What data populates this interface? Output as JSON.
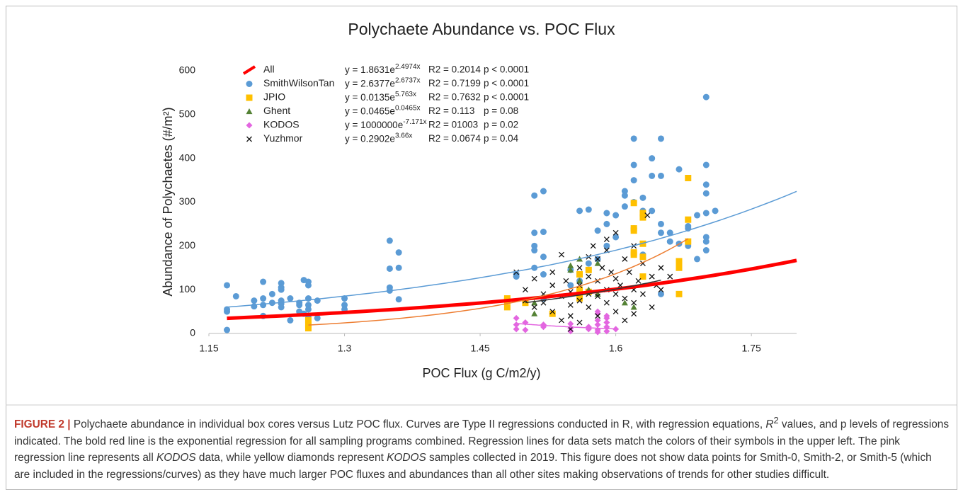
{
  "chart_data": {
    "type": "scatter",
    "title": "Polychaete Abundance vs. POC Flux",
    "x_label": "POC Flux (g C/m2/y)",
    "y_label": "Abundance of Polychaetes (#/m²)",
    "xlim": [
      1.15,
      1.8
    ],
    "xticks": [
      1.15,
      1.3,
      1.45,
      1.6,
      1.75
    ],
    "ylim": [
      0,
      600
    ],
    "yticks": [
      0,
      100,
      200,
      300,
      400,
      500,
      600
    ],
    "grid": false,
    "legend": "upper left",
    "series": [
      {
        "name": "All",
        "color": "#ff0000",
        "marker": "line",
        "equation_base": "y = 1.8631e",
        "equation_exponent": "2.4974x",
        "r2": "R2 = 0.2014",
        "p": "p < 0.0001",
        "fit": {
          "a": 1.8631,
          "b": 2.4974,
          "x_range": [
            1.17,
            1.8
          ],
          "color": "#ff0000",
          "width": 5
        },
        "x": [],
        "values": []
      },
      {
        "name": "SmithWilsonTan",
        "color": "#5b9bd5",
        "marker": "circle",
        "equation_base": "y = 2.6377e",
        "equation_exponent": "2.6737x",
        "r2": "R2 = 0.7199",
        "p": "p < 0.0001",
        "fit": {
          "a": 2.6377,
          "b": 2.6737,
          "x_range": [
            1.17,
            1.8
          ],
          "color": "#5b9bd5",
          "width": 1.5
        },
        "x": [
          1.17,
          1.17,
          1.17,
          1.17,
          1.18,
          1.2,
          1.2,
          1.21,
          1.21,
          1.21,
          1.21,
          1.22,
          1.22,
          1.23,
          1.23,
          1.23,
          1.23,
          1.23,
          1.23,
          1.24,
          1.24,
          1.25,
          1.25,
          1.25,
          1.255,
          1.255,
          1.26,
          1.26,
          1.26,
          1.26,
          1.26,
          1.26,
          1.27,
          1.27,
          1.3,
          1.3,
          1.3,
          1.35,
          1.35,
          1.35,
          1.35,
          1.36,
          1.36,
          1.36,
          1.49,
          1.49,
          1.51,
          1.51,
          1.51,
          1.51,
          1.51,
          1.52,
          1.52,
          1.52,
          1.52,
          1.52,
          1.55,
          1.55,
          1.56,
          1.56,
          1.57,
          1.57,
          1.58,
          1.58,
          1.59,
          1.59,
          1.59,
          1.6,
          1.6,
          1.61,
          1.61,
          1.61,
          1.62,
          1.62,
          1.62,
          1.62,
          1.62,
          1.63,
          1.63,
          1.63,
          1.64,
          1.64,
          1.64,
          1.65,
          1.65,
          1.65,
          1.65,
          1.65,
          1.66,
          1.66,
          1.67,
          1.67,
          1.68,
          1.68,
          1.68,
          1.69,
          1.69,
          1.7,
          1.7,
          1.7,
          1.7,
          1.7,
          1.7,
          1.7,
          1.7,
          1.71
        ],
        "values": [
          110,
          55,
          50,
          8,
          85,
          62,
          75,
          118,
          80,
          65,
          40,
          90,
          70,
          115,
          105,
          100,
          75,
          68,
          60,
          30,
          80,
          50,
          70,
          65,
          122,
          45,
          118,
          110,
          80,
          65,
          55,
          40,
          75,
          35,
          80,
          65,
          55,
          212,
          148,
          105,
          98,
          185,
          150,
          78,
          135,
          130,
          315,
          230,
          200,
          190,
          150,
          325,
          232,
          175,
          135,
          80,
          145,
          110,
          280,
          120,
          283,
          160,
          235,
          170,
          275,
          250,
          200,
          270,
          220,
          325,
          315,
          290,
          445,
          385,
          350,
          300,
          240,
          310,
          280,
          180,
          400,
          360,
          280,
          445,
          360,
          250,
          230,
          90,
          230,
          210,
          375,
          205,
          245,
          240,
          200,
          270,
          170,
          540,
          385,
          340,
          320,
          275,
          220,
          210,
          190,
          280
        ]
      },
      {
        "name": "JPIO",
        "color": "#ffc000",
        "marker": "square",
        "equation_base": "y = 0.0135e",
        "equation_exponent": "5.763x",
        "r2": "R2 = 0.7632",
        "p": "p < 0.0001",
        "fit": {
          "a": 0.0135,
          "b": 5.763,
          "x_range": [
            1.26,
            1.68
          ],
          "color": "#ed7d31",
          "width": 1.5
        },
        "x": [
          1.26,
          1.26,
          1.26,
          1.62,
          1.62,
          1.62,
          1.62,
          1.62,
          1.63,
          1.63,
          1.63,
          1.63,
          1.63,
          1.67,
          1.67,
          1.67,
          1.67,
          1.68,
          1.68,
          1.68,
          1.56,
          1.56,
          1.56,
          1.57,
          1.57,
          1.48,
          1.48,
          1.48,
          1.5,
          1.53
        ],
        "values": [
          30,
          20,
          12,
          298,
          240,
          235,
          185,
          180,
          275,
          265,
          205,
          175,
          130,
          165,
          155,
          150,
          90,
          355,
          260,
          210,
          135,
          100,
          80,
          145,
          95,
          60,
          75,
          80,
          70,
          45
        ]
      },
      {
        "name": "Ghent",
        "color": "#548235",
        "marker": "triangle",
        "equation_base": "y = 0.0465e",
        "equation_exponent": "0.0465x",
        "r2": "R2 = 0.113",
        "p": "p = 0.08",
        "x": [
          1.51,
          1.51,
          1.55,
          1.55,
          1.56,
          1.56,
          1.57,
          1.58,
          1.58,
          1.61,
          1.62
        ],
        "values": [
          45,
          70,
          145,
          155,
          170,
          120,
          100,
          160,
          90,
          70,
          60
        ]
      },
      {
        "name": "KODOS",
        "color": "#e366e0",
        "marker": "diamond",
        "equation_base": "y = 1000000e",
        "equation_exponent": "-7.171x",
        "r2": "R2 = 01003",
        "p": "p = 0.02",
        "fit": {
          "a": 1000000,
          "b": -7.171,
          "x_range": [
            1.49,
            1.6
          ],
          "color": "#e366e0",
          "width": 1.5
        },
        "x": [
          1.49,
          1.49,
          1.49,
          1.5,
          1.5,
          1.52,
          1.52,
          1.55,
          1.55,
          1.55,
          1.57,
          1.57,
          1.58,
          1.58,
          1.58,
          1.58,
          1.58,
          1.58,
          1.59,
          1.59,
          1.59,
          1.59,
          1.59,
          1.6
        ],
        "values": [
          35,
          20,
          10,
          25,
          8,
          20,
          15,
          5,
          12,
          22,
          10,
          15,
          50,
          45,
          30,
          20,
          8,
          3,
          40,
          35,
          25,
          15,
          5,
          10
        ]
      },
      {
        "name": "Yuzhmor",
        "color": "#111111",
        "marker": "cross",
        "equation_base": "y = 0.2902e",
        "equation_exponent": "3.66x",
        "r2": "R2 = 0.0674",
        "p": "p = 0.04",
        "fit": {
          "a": 0.2902,
          "b": 3.66,
          "x_range": [
            1.5,
            1.65
          ],
          "color": "#333333",
          "width": 1.5
        },
        "x": [
          1.49,
          1.5,
          1.5,
          1.51,
          1.51,
          1.52,
          1.52,
          1.53,
          1.53,
          1.54,
          1.54,
          1.54,
          1.545,
          1.55,
          1.55,
          1.55,
          1.55,
          1.56,
          1.56,
          1.56,
          1.56,
          1.57,
          1.57,
          1.57,
          1.575,
          1.58,
          1.58,
          1.58,
          1.58,
          1.585,
          1.59,
          1.59,
          1.59,
          1.595,
          1.6,
          1.6,
          1.6,
          1.6,
          1.605,
          1.61,
          1.61,
          1.61,
          1.615,
          1.62,
          1.62,
          1.62,
          1.625,
          1.63,
          1.63,
          1.635,
          1.64,
          1.64,
          1.645,
          1.65,
          1.65,
          1.66,
          1.59,
          1.57,
          1.53,
          1.62
        ],
        "values": [
          140,
          100,
          75,
          125,
          60,
          90,
          70,
          110,
          50,
          180,
          85,
          30,
          120,
          95,
          65,
          40,
          10,
          150,
          110,
          75,
          25,
          130,
          90,
          60,
          200,
          170,
          120,
          85,
          40,
          150,
          190,
          100,
          70,
          140,
          230,
          125,
          90,
          50,
          110,
          170,
          80,
          30,
          140,
          200,
          100,
          70,
          120,
          160,
          90,
          270,
          130,
          60,
          110,
          100,
          150,
          130,
          215,
          175,
          140,
          45
        ]
      }
    ]
  },
  "caption": {
    "parts": [
      "FIGURE 2 |",
      " Polychaete abundance in individual box cores versus Lutz POC flux. Curves are Type II regressions conducted in R, with regression equations, ",
      "R",
      "2",
      " values, and p levels of regressions indicated. The bold red line is the exponential regression for all sampling programs combined. Regression lines for data sets match the colors of their symbols in the upper left. The pink regression line represents all ",
      "KODOS",
      " data, while yellow diamonds represent ",
      "KODOS",
      " samples collected in 2019. This figure does not show data points for Smith-0, Smith-2, or Smith-5 (which are included in the regressions/curves) as they have much larger POC fluxes and abundances than all other sites making observations of trends for other studies difficult."
    ]
  }
}
